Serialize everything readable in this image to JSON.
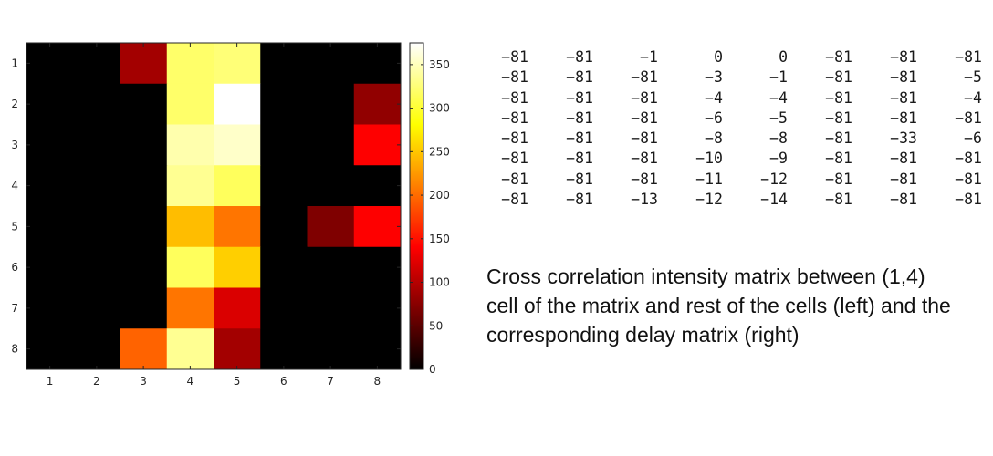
{
  "chart_data": {
    "type": "heatmap",
    "title": "",
    "xlabel": "",
    "ylabel": "",
    "x_categories": [
      "1",
      "2",
      "3",
      "4",
      "5",
      "6",
      "7",
      "8"
    ],
    "y_categories": [
      "1",
      "2",
      "3",
      "4",
      "5",
      "6",
      "7",
      "8"
    ],
    "colormap": "hot",
    "color_range": [
      0,
      375
    ],
    "colorbar_ticks": [
      "0",
      "50",
      "100",
      "150",
      "200",
      "250",
      "300",
      "350"
    ],
    "values": [
      [
        0,
        0,
        90,
        320,
        325,
        0,
        0,
        0
      ],
      [
        0,
        0,
        0,
        320,
        375,
        0,
        0,
        80
      ],
      [
        0,
        0,
        0,
        345,
        355,
        0,
        0,
        140
      ],
      [
        0,
        0,
        0,
        335,
        315,
        0,
        0,
        0
      ],
      [
        0,
        0,
        0,
        245,
        205,
        0,
        70,
        140
      ],
      [
        0,
        0,
        0,
        315,
        255,
        0,
        0,
        0
      ],
      [
        0,
        0,
        0,
        205,
        120,
        0,
        0,
        0
      ],
      [
        0,
        0,
        195,
        335,
        90,
        0,
        0,
        0
      ]
    ]
  },
  "delay_matrix": [
    [
      "−81",
      "−81",
      "−1",
      "0",
      "0",
      "−81",
      "−81",
      "−81"
    ],
    [
      "−81",
      "−81",
      "−81",
      "−3",
      "−1",
      "−81",
      "−81",
      "−5"
    ],
    [
      "−81",
      "−81",
      "−81",
      "−4",
      "−4",
      "−81",
      "−81",
      "−4"
    ],
    [
      "−81",
      "−81",
      "−81",
      "−6",
      "−5",
      "−81",
      "−81",
      "−81"
    ],
    [
      "−81",
      "−81",
      "−81",
      "−8",
      "−8",
      "−81",
      "−33",
      "−6"
    ],
    [
      "−81",
      "−81",
      "−81",
      "−10",
      "−9",
      "−81",
      "−81",
      "−81"
    ],
    [
      "−81",
      "−81",
      "−81",
      "−11",
      "−12",
      "−81",
      "−81",
      "−81"
    ],
    [
      "−81",
      "−81",
      "−13",
      "−12",
      "−14",
      "−81",
      "−81",
      "−81"
    ]
  ],
  "caption": "Cross correlation intensity matrix between (1,4) cell of the matrix and rest of the cells (left) and the corresponding delay matrix (right)"
}
